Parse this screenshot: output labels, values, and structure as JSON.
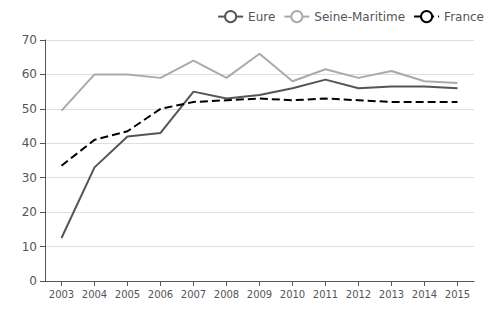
{
  "chart_data": {
    "type": "line",
    "x": [
      2003,
      2004,
      2005,
      2006,
      2007,
      2008,
      2009,
      2010,
      2011,
      2012,
      2013,
      2014,
      2015
    ],
    "series": [
      {
        "name": "Eure",
        "color": "#555555",
        "line_style": "solid",
        "values": [
          12.5,
          33,
          42,
          43,
          55,
          53,
          54,
          56,
          58.5,
          56,
          56.5,
          56.5,
          56
        ]
      },
      {
        "name": "Seine-Maritime",
        "color": "#aaaaaa",
        "line_style": "solid",
        "values": [
          49.5,
          60,
          60,
          59,
          64,
          59,
          66,
          58,
          61.5,
          59,
          61,
          58,
          57.5
        ]
      },
      {
        "name": "France",
        "color": "#000000",
        "line_style": "dashed",
        "values": [
          33.5,
          41,
          43.5,
          50,
          52,
          52.5,
          53,
          52.5,
          53,
          52.5,
          52,
          52,
          52
        ]
      }
    ],
    "xlim": [
      2002.5,
      2015.5
    ],
    "xticks": [
      2003,
      2004,
      2005,
      2006,
      2007,
      2008,
      2009,
      2010,
      2011,
      2012,
      2013,
      2014,
      2015
    ],
    "ylim": [
      0,
      70
    ],
    "yticks": [
      0,
      10,
      20,
      30,
      40,
      50,
      60,
      70
    ],
    "grid": true,
    "legend": "upper right"
  }
}
